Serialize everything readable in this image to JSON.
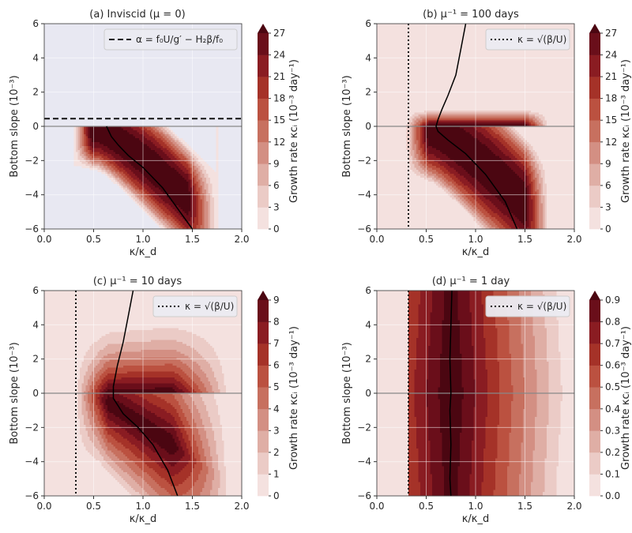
{
  "chart_data": [
    {
      "type": "heatmap",
      "panel": "a",
      "title": "(a) Inviscid (μ = 0)",
      "xlabel": "κ/κ_d",
      "ylabel": "Bottom slope (10⁻³)",
      "xlim": [
        0,
        2
      ],
      "ylim": [
        -6,
        6
      ],
      "xticks": [
        "0.0",
        "0.5",
        "1.0",
        "1.5",
        "2.0"
      ],
      "yticks": [
        "−6",
        "−4",
        "−2",
        "0",
        "2",
        "4",
        "6"
      ],
      "colorbar": {
        "label": "Growth rate κcᵢ (10⁻³ day⁻¹)",
        "ticks": [
          "0",
          "3",
          "6",
          "9",
          "12",
          "15",
          "18",
          "21",
          "24",
          "27"
        ],
        "max": 27
      },
      "legend": {
        "style": "dashed",
        "label": "α = f₀U/g′ − H₂β/f₀",
        "position": "top-right"
      },
      "dashed_line_y": 0.45,
      "max_growth_curve": {
        "x": [
          0.63,
          0.68,
          0.75,
          0.85,
          1.0,
          1.2,
          1.4,
          1.5
        ],
        "y": [
          0.0,
          -0.6,
          -1.1,
          -1.7,
          -2.4,
          -3.6,
          -5.2,
          -6.0
        ]
      }
    },
    {
      "type": "heatmap",
      "panel": "b",
      "title": "(b) μ⁻¹ = 100 days",
      "xlabel": "κ/κ_d",
      "ylabel": "Bottom slope (10⁻³)",
      "xlim": [
        0,
        2
      ],
      "ylim": [
        -6,
        6
      ],
      "xticks": [
        "0.0",
        "0.5",
        "1.0",
        "1.5",
        "2.0"
      ],
      "yticks": [
        "−6",
        "−4",
        "−2",
        "0",
        "2",
        "4",
        "6"
      ],
      "colorbar": {
        "label": "Growth rate κcᵢ (10⁻³ day⁻¹)",
        "ticks": [
          "0",
          "3",
          "6",
          "9",
          "12",
          "15",
          "18",
          "21",
          "24",
          "27"
        ],
        "max": 27
      },
      "legend": {
        "style": "dotted",
        "label": "κ = √(β/U)",
        "position": "top-right"
      },
      "dotted_line_x": 0.32,
      "max_growth_curve": {
        "x": [
          0.9,
          0.85,
          0.8,
          0.72,
          0.66,
          0.62,
          0.6,
          0.62,
          0.72,
          0.9,
          1.1,
          1.3,
          1.42
        ],
        "y": [
          6.0,
          4.5,
          3.0,
          1.8,
          1.0,
          0.4,
          0.0,
          -0.3,
          -0.8,
          -1.6,
          -2.8,
          -4.4,
          -6.0
        ]
      }
    },
    {
      "type": "heatmap",
      "panel": "c",
      "title": "(c) μ⁻¹ = 10 days",
      "xlabel": "κ/κ_d",
      "ylabel": "Bottom slope (10⁻³)",
      "xlim": [
        0,
        2
      ],
      "ylim": [
        -6,
        6
      ],
      "xticks": [
        "0.0",
        "0.5",
        "1.0",
        "1.5",
        "2.0"
      ],
      "yticks": [
        "−6",
        "−4",
        "−2",
        "0",
        "2",
        "4",
        "6"
      ],
      "colorbar": {
        "label": "Growth rate κcᵢ (10⁻³ day⁻¹)",
        "ticks": [
          "0",
          "1",
          "2",
          "3",
          "4",
          "5",
          "6",
          "7",
          "8",
          "9"
        ],
        "max": 9
      },
      "legend": {
        "style": "dotted",
        "label": "κ = √(β/U)",
        "position": "top-right"
      },
      "dotted_line_x": 0.32,
      "max_growth_curve": {
        "x": [
          0.9,
          0.85,
          0.8,
          0.74,
          0.7,
          0.7,
          0.8,
          0.95,
          1.1,
          1.25,
          1.35
        ],
        "y": [
          6.0,
          4.5,
          3.0,
          1.6,
          0.4,
          -0.3,
          -1.2,
          -2.0,
          -3.0,
          -4.5,
          -6.0
        ]
      }
    },
    {
      "type": "heatmap",
      "panel": "d",
      "title": "(d) μ⁻¹ = 1 day",
      "xlabel": "κ/κ_d",
      "ylabel": "Bottom slope (10⁻³)",
      "xlim": [
        0,
        2
      ],
      "ylim": [
        -6,
        6
      ],
      "xticks": [
        "0.0",
        "0.5",
        "1.0",
        "1.5",
        "2.0"
      ],
      "yticks": [
        "−6",
        "−4",
        "−2",
        "0",
        "2",
        "4",
        "6"
      ],
      "colorbar": {
        "label": "Growth rate κcᵢ (10⁻³ day⁻¹)",
        "ticks": [
          "0.0",
          "0.1",
          "0.2",
          "0.3",
          "0.4",
          "0.5",
          "0.6",
          "0.7",
          "0.8",
          "0.9"
        ],
        "max": 0.9
      },
      "legend": {
        "style": "dotted",
        "label": "κ = √(β/U)",
        "position": "top-right"
      },
      "dotted_line_x": 0.32,
      "max_growth_curve": {
        "x": [
          0.76,
          0.75,
          0.74,
          0.75,
          0.74,
          0.75,
          0.74,
          0.75
        ],
        "y": [
          6.0,
          4.0,
          2.0,
          0.0,
          -1.0,
          -3.0,
          -5.0,
          -6.0
        ]
      }
    }
  ],
  "colors": {
    "bg": "#e8e8f2",
    "levels": [
      "#f4e1df",
      "#ebcbc6",
      "#dfaea5",
      "#d38f83",
      "#c7705f",
      "#bb5140",
      "#a53228",
      "#8a1c22",
      "#6a0e1a",
      "#4b0611"
    ],
    "grid": "#ffffff",
    "zero_line": "#888888"
  }
}
